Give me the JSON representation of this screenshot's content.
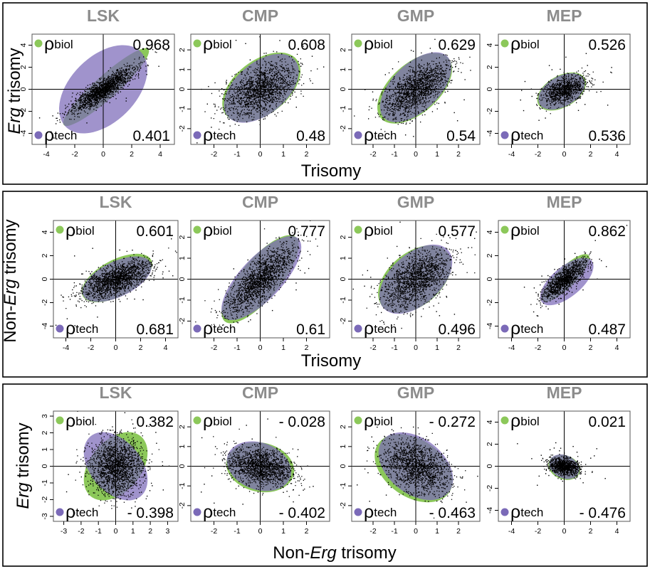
{
  "figure": {
    "colors": {
      "biol": "#8cc85a",
      "tech": "#7b6ab8",
      "overlap_green": "#3fb89a",
      "overlap_blue": "#4b86c6",
      "panel_title": "#8c8c8c",
      "points": "#000000",
      "frame": "#000000"
    },
    "rows": [
      {
        "ylabel_parts": [
          "Erg",
          " trisomy"
        ],
        "xlabel_parts": [
          "Trisomy"
        ],
        "panels": [
          {
            "title": "LSK",
            "rho_biol": "0.968",
            "rho_tech": "0.401",
            "xticks": [
              -4,
              -2,
              0,
              2,
              4
            ],
            "yticks": [
              -4,
              -2,
              0,
              2,
              4
            ],
            "xlim": [
              -5,
              5
            ],
            "ylim": [
              -5,
              5
            ],
            "green": {
              "cx": 0.2,
              "cy": 0.2,
              "sx": 4.5,
              "sy": 0.9,
              "angle": 42
            },
            "purple": {
              "cx": 0,
              "cy": 0,
              "sx": 4.2,
              "sy": 2.6,
              "angle": 45
            },
            "cloud": {
              "sx": 1.4,
              "sy": 0.35,
              "angle": 42,
              "n": 1600
            }
          },
          {
            "title": "CMP",
            "rho_biol": "0.608",
            "rho_tech": "0.48",
            "xticks": [
              -2,
              -1,
              0,
              1,
              2
            ],
            "yticks": [
              -2,
              -1,
              0,
              1,
              2
            ],
            "xlim": [
              -3,
              3
            ],
            "ylim": [
              -2.8,
              2.8
            ],
            "green": {
              "cx": 0.05,
              "cy": 0.1,
              "sx": 2.1,
              "sy": 1.25,
              "angle": 38
            },
            "purple": {
              "cx": 0.05,
              "cy": 0.05,
              "sx": 2.05,
              "sy": 1.2,
              "angle": 40
            },
            "cloud": {
              "sx": 0.85,
              "sy": 0.5,
              "angle": 38,
              "n": 1500
            }
          },
          {
            "title": "GMP",
            "rho_biol": "0.629",
            "rho_tech": "0.54",
            "xticks": [
              -2,
              -1,
              0,
              1,
              2
            ],
            "yticks": [
              -2,
              -1,
              0,
              1,
              2
            ],
            "xlim": [
              -3,
              3
            ],
            "ylim": [
              -2.8,
              2.8
            ],
            "green": {
              "cx": -0.05,
              "cy": 0.05,
              "sx": 2.2,
              "sy": 1.2,
              "angle": 42
            },
            "purple": {
              "cx": 0,
              "cy": 0.1,
              "sx": 2.15,
              "sy": 1.15,
              "angle": 44
            },
            "cloud": {
              "sx": 0.9,
              "sy": 0.45,
              "angle": 42,
              "n": 1500
            }
          },
          {
            "title": "MEP",
            "rho_biol": "0.526",
            "rho_tech": "0.536",
            "xticks": [
              -4,
              -2,
              0,
              2,
              4
            ],
            "yticks": [
              -4,
              -2,
              0,
              2,
              4
            ],
            "xlim": [
              -5,
              5
            ],
            "ylim": [
              -5,
              5
            ],
            "green": {
              "cx": -0.2,
              "cy": -0.2,
              "sx": 2.2,
              "sy": 1.3,
              "angle": 30
            },
            "purple": {
              "cx": -0.2,
              "cy": -0.2,
              "sx": 2.1,
              "sy": 1.25,
              "angle": 30
            },
            "cloud": {
              "sx": 0.9,
              "sy": 0.5,
              "angle": 30,
              "n": 900
            }
          }
        ]
      },
      {
        "ylabel_parts": [
          "Non-",
          "Erg",
          " trisomy"
        ],
        "xlabel_parts": [
          "Trisomy"
        ],
        "panels": [
          {
            "title": "LSK",
            "rho_biol": "0.601",
            "rho_tech": "0.681",
            "xticks": [
              -4,
              -2,
              0,
              2,
              4
            ],
            "yticks": [
              -4,
              -2,
              0,
              2,
              4
            ],
            "xlim": [
              -5,
              5
            ],
            "ylim": [
              -5,
              5
            ],
            "green": {
              "cx": 0.1,
              "cy": 0.1,
              "sx": 3.2,
              "sy": 1.5,
              "angle": 28
            },
            "purple": {
              "cx": 0.1,
              "cy": 0,
              "sx": 3.1,
              "sy": 1.45,
              "angle": 26
            },
            "cloud": {
              "sx": 1.5,
              "sy": 0.55,
              "angle": 25,
              "n": 1600
            }
          },
          {
            "title": "CMP",
            "rho_biol": "0.777",
            "rho_tech": "0.61",
            "xticks": [
              -2,
              -1,
              0,
              1,
              2
            ],
            "yticks": [
              -2,
              -1,
              0,
              1,
              2
            ],
            "xlim": [
              -3,
              3
            ],
            "ylim": [
              -2.8,
              2.8
            ],
            "green": {
              "cx": 0,
              "cy": 0,
              "sx": 2.5,
              "sy": 0.9,
              "angle": 50
            },
            "purple": {
              "cx": 0.05,
              "cy": 0.05,
              "sx": 2.45,
              "sy": 0.95,
              "angle": 47
            },
            "cloud": {
              "sx": 1.0,
              "sy": 0.35,
              "angle": 48,
              "n": 1600
            }
          },
          {
            "title": "GMP",
            "rho_biol": "0.577",
            "rho_tech": "0.496",
            "xticks": [
              -2,
              -1,
              0,
              1,
              2
            ],
            "yticks": [
              -2,
              -1,
              0,
              1,
              2
            ],
            "xlim": [
              -3,
              3
            ],
            "ylim": [
              -2.8,
              2.8
            ],
            "green": {
              "cx": -0.05,
              "cy": 0,
              "sx": 2.0,
              "sy": 1.25,
              "angle": 40
            },
            "purple": {
              "cx": 0,
              "cy": 0,
              "sx": 2.05,
              "sy": 1.2,
              "angle": 42
            },
            "cloud": {
              "sx": 0.9,
              "sy": 0.5,
              "angle": 40,
              "n": 1500
            }
          },
          {
            "title": "MEP",
            "rho_biol": "0.862",
            "rho_tech": "0.487",
            "xticks": [
              -4,
              -2,
              0,
              2,
              4
            ],
            "yticks": [
              -4,
              -2,
              0,
              2,
              4
            ],
            "xlim": [
              -5,
              5
            ],
            "ylim": [
              -5,
              5
            ],
            "green": {
              "cx": 0.1,
              "cy": 0.1,
              "sx": 2.6,
              "sy": 0.8,
              "angle": 45
            },
            "purple": {
              "cx": 0.2,
              "cy": -0.2,
              "sx": 2.6,
              "sy": 1.2,
              "angle": 40
            },
            "cloud": {
              "sx": 1.1,
              "sy": 0.35,
              "angle": 45,
              "n": 1100
            }
          }
        ]
      },
      {
        "ylabel_parts": [
          "Erg",
          " trisomy"
        ],
        "xlabel_parts": [
          "Non-",
          "Erg",
          " trisomy"
        ],
        "panels": [
          {
            "title": "LSK",
            "rho_biol": "0.382",
            "rho_tech": "- 0.398",
            "xticks": [
              -3,
              -2,
              -1,
              0,
              1,
              2,
              3
            ],
            "yticks": [
              -3,
              -2,
              -1,
              0,
              1,
              2,
              3
            ],
            "xlim": [
              -3.6,
              3.6
            ],
            "ylim": [
              -3.3,
              3.3
            ],
            "green": {
              "cx": 0,
              "cy": 0,
              "sx": 2.3,
              "sy": 1.5,
              "angle": 50
            },
            "purple": {
              "cx": 0,
              "cy": 0,
              "sx": 2.3,
              "sy": 1.5,
              "angle": -50
            },
            "cloud": {
              "sx": 0.75,
              "sy": 0.85,
              "angle": 0,
              "n": 1700
            }
          },
          {
            "title": "CMP",
            "rho_biol": "- 0.028",
            "rho_tech": "- 0.402",
            "xticks": [
              -2,
              -1,
              0,
              1,
              2
            ],
            "yticks": [
              -2,
              -1,
              0,
              1,
              2
            ],
            "xlim": [
              -3,
              3
            ],
            "ylim": [
              -2.8,
              2.8
            ],
            "green": {
              "cx": 0,
              "cy": -0.05,
              "sx": 1.6,
              "sy": 1.15,
              "angle": -12
            },
            "purple": {
              "cx": -0.05,
              "cy": 0,
              "sx": 1.55,
              "sy": 1.1,
              "angle": -20
            },
            "cloud": {
              "sx": 0.7,
              "sy": 0.45,
              "angle": -15,
              "n": 1500
            }
          },
          {
            "title": "GMP",
            "rho_biol": "- 0.272",
            "rho_tech": "- 0.463",
            "xticks": [
              -2,
              -1,
              0,
              1,
              2
            ],
            "yticks": [
              -2,
              -1,
              0,
              1,
              2
            ],
            "xlim": [
              -3,
              3
            ],
            "ylim": [
              -2.8,
              2.8
            ],
            "green": {
              "cx": -0.1,
              "cy": -0.1,
              "sx": 2.1,
              "sy": 1.4,
              "angle": -35
            },
            "purple": {
              "cx": 0,
              "cy": 0,
              "sx": 2.05,
              "sy": 1.35,
              "angle": -38
            },
            "cloud": {
              "sx": 0.85,
              "sy": 0.55,
              "angle": -35,
              "n": 1500
            }
          },
          {
            "title": "MEP",
            "rho_biol": "0.021",
            "rho_tech": "- 0.476",
            "xticks": [
              -4,
              -2,
              0,
              2,
              4
            ],
            "yticks": [
              -4,
              -2,
              0,
              2,
              4
            ],
            "xlim": [
              -5,
              5
            ],
            "ylim": [
              -5,
              5
            ],
            "green": {
              "cx": 0,
              "cy": -0.1,
              "sx": 1.35,
              "sy": 1.0,
              "angle": -20
            },
            "purple": {
              "cx": 0,
              "cy": -0.05,
              "sx": 1.3,
              "sy": 0.95,
              "angle": -25
            },
            "cloud": {
              "sx": 0.6,
              "sy": 0.35,
              "angle": -15,
              "n": 900
            }
          }
        ]
      }
    ]
  },
  "chart_data": {
    "type": "scatter",
    "series_legend": [
      {
        "symbol": "ρ",
        "subscript": "biol",
        "color": "#8cc85a"
      },
      {
        "symbol": "ρ",
        "subscript": "tech",
        "color": "#7b6ab8"
      }
    ],
    "rows": [
      {
        "xlabel": "Trisomy",
        "ylabel": "Erg trisomy",
        "panels": [
          {
            "title": "LSK",
            "rho_biol": 0.968,
            "rho_tech": 0.401,
            "xlim": [
              -5,
              5
            ],
            "ylim": [
              -5,
              5
            ]
          },
          {
            "title": "CMP",
            "rho_biol": 0.608,
            "rho_tech": 0.48,
            "xlim": [
              -3,
              3
            ],
            "ylim": [
              -2.8,
              2.8
            ]
          },
          {
            "title": "GMP",
            "rho_biol": 0.629,
            "rho_tech": 0.54,
            "xlim": [
              -3,
              3
            ],
            "ylim": [
              -2.8,
              2.8
            ]
          },
          {
            "title": "MEP",
            "rho_biol": 0.526,
            "rho_tech": 0.536,
            "xlim": [
              -5,
              5
            ],
            "ylim": [
              -5,
              5
            ]
          }
        ]
      },
      {
        "xlabel": "Trisomy",
        "ylabel": "Non-Erg trisomy",
        "panels": [
          {
            "title": "LSK",
            "rho_biol": 0.601,
            "rho_tech": 0.681,
            "xlim": [
              -5,
              5
            ],
            "ylim": [
              -5,
              5
            ]
          },
          {
            "title": "CMP",
            "rho_biol": 0.777,
            "rho_tech": 0.61,
            "xlim": [
              -3,
              3
            ],
            "ylim": [
              -2.8,
              2.8
            ]
          },
          {
            "title": "GMP",
            "rho_biol": 0.577,
            "rho_tech": 0.496,
            "xlim": [
              -3,
              3
            ],
            "ylim": [
              -2.8,
              2.8
            ]
          },
          {
            "title": "MEP",
            "rho_biol": 0.862,
            "rho_tech": 0.487,
            "xlim": [
              -5,
              5
            ],
            "ylim": [
              -5,
              5
            ]
          }
        ]
      },
      {
        "xlabel": "Non-Erg trisomy",
        "ylabel": "Erg trisomy",
        "panels": [
          {
            "title": "LSK",
            "rho_biol": 0.382,
            "rho_tech": -0.398,
            "xlim": [
              -3.6,
              3.6
            ],
            "ylim": [
              -3.3,
              3.3
            ]
          },
          {
            "title": "CMP",
            "rho_biol": -0.028,
            "rho_tech": -0.402,
            "xlim": [
              -3,
              3
            ],
            "ylim": [
              -2.8,
              2.8
            ]
          },
          {
            "title": "GMP",
            "rho_biol": -0.272,
            "rho_tech": -0.463,
            "xlim": [
              -3,
              3
            ],
            "ylim": [
              -2.8,
              2.8
            ]
          },
          {
            "title": "MEP",
            "rho_biol": 0.021,
            "rho_tech": -0.476,
            "xlim": [
              -5,
              5
            ],
            "ylim": [
              -5,
              5
            ]
          }
        ]
      }
    ]
  }
}
